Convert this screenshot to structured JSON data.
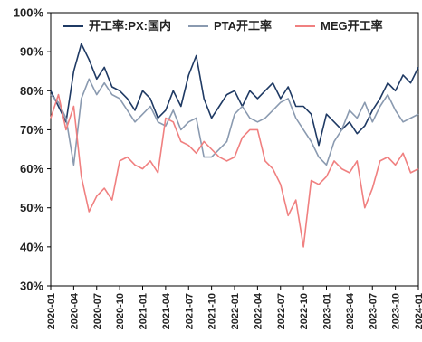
{
  "chart_data": {
    "type": "line",
    "title": "",
    "xlabel": "",
    "ylabel": "",
    "ylim": [
      30,
      100
    ],
    "yticks": [
      "30%",
      "40%",
      "50%",
      "60%",
      "70%",
      "80%",
      "90%",
      "100%"
    ],
    "x_range": [
      "2020-01",
      "2024-01"
    ],
    "xticks": [
      "2020-01",
      "2020-04",
      "2020-07",
      "2020-10",
      "2021-01",
      "2021-04",
      "2021-07",
      "2021-10",
      "2022-01",
      "2022-04",
      "2022-07",
      "2022-10",
      "2023-01",
      "2023-04",
      "2023-07",
      "2023-10",
      "2024-01"
    ],
    "grid": false,
    "legend_position": "top",
    "series": [
      {
        "name": "开工率:PX:国内",
        "color": "#1f3a64",
        "points": [
          [
            "2020-01",
            80
          ],
          [
            "2020-02",
            76
          ],
          [
            "2020-03",
            72
          ],
          [
            "2020-04",
            85
          ],
          [
            "2020-05",
            92
          ],
          [
            "2020-06",
            88
          ],
          [
            "2020-07",
            83
          ],
          [
            "2020-08",
            86
          ],
          [
            "2020-09",
            81
          ],
          [
            "2020-10",
            80
          ],
          [
            "2020-11",
            78
          ],
          [
            "2020-12",
            75
          ],
          [
            "2021-01",
            80
          ],
          [
            "2021-02",
            78
          ],
          [
            "2021-03",
            73
          ],
          [
            "2021-04",
            75
          ],
          [
            "2021-05",
            80
          ],
          [
            "2021-06",
            76
          ],
          [
            "2021-07",
            84
          ],
          [
            "2021-08",
            89
          ],
          [
            "2021-09",
            78
          ],
          [
            "2021-10",
            73
          ],
          [
            "2021-11",
            76
          ],
          [
            "2021-12",
            79
          ],
          [
            "2022-01",
            80
          ],
          [
            "2022-02",
            76
          ],
          [
            "2022-03",
            80
          ],
          [
            "2022-04",
            78
          ],
          [
            "2022-05",
            80
          ],
          [
            "2022-06",
            82
          ],
          [
            "2022-07",
            78
          ],
          [
            "2022-08",
            81
          ],
          [
            "2022-09",
            76
          ],
          [
            "2022-10",
            76
          ],
          [
            "2022-11",
            74
          ],
          [
            "2022-12",
            66
          ],
          [
            "2023-01",
            74
          ],
          [
            "2023-02",
            72
          ],
          [
            "2023-03",
            70
          ],
          [
            "2023-04",
            72
          ],
          [
            "2023-05",
            69
          ],
          [
            "2023-06",
            71
          ],
          [
            "2023-07",
            75
          ],
          [
            "2023-08",
            78
          ],
          [
            "2023-09",
            82
          ],
          [
            "2023-10",
            80
          ],
          [
            "2023-11",
            84
          ],
          [
            "2023-12",
            82
          ],
          [
            "2024-01",
            86
          ]
        ]
      },
      {
        "name": "PTA开工率",
        "color": "#8a9ab0",
        "points": [
          [
            "2020-01",
            79
          ],
          [
            "2020-02",
            77
          ],
          [
            "2020-03",
            73
          ],
          [
            "2020-04",
            61
          ],
          [
            "2020-05",
            78
          ],
          [
            "2020-06",
            83
          ],
          [
            "2020-07",
            79
          ],
          [
            "2020-08",
            82
          ],
          [
            "2020-09",
            79
          ],
          [
            "2020-10",
            78
          ],
          [
            "2020-11",
            75
          ],
          [
            "2020-12",
            72
          ],
          [
            "2021-01",
            74
          ],
          [
            "2021-02",
            76
          ],
          [
            "2021-03",
            72
          ],
          [
            "2021-04",
            71
          ],
          [
            "2021-05",
            75
          ],
          [
            "2021-06",
            70
          ],
          [
            "2021-07",
            72
          ],
          [
            "2021-08",
            73
          ],
          [
            "2021-09",
            63
          ],
          [
            "2021-10",
            63
          ],
          [
            "2021-11",
            65
          ],
          [
            "2021-12",
            67
          ],
          [
            "2022-01",
            74
          ],
          [
            "2022-02",
            76
          ],
          [
            "2022-03",
            73
          ],
          [
            "2022-04",
            72
          ],
          [
            "2022-05",
            73
          ],
          [
            "2022-06",
            75
          ],
          [
            "2022-07",
            77
          ],
          [
            "2022-08",
            78
          ],
          [
            "2022-09",
            73
          ],
          [
            "2022-10",
            70
          ],
          [
            "2022-11",
            67
          ],
          [
            "2022-12",
            63
          ],
          [
            "2023-01",
            61
          ],
          [
            "2023-02",
            67
          ],
          [
            "2023-03",
            70
          ],
          [
            "2023-04",
            75
          ],
          [
            "2023-05",
            73
          ],
          [
            "2023-06",
            77
          ],
          [
            "2023-07",
            72
          ],
          [
            "2023-08",
            76
          ],
          [
            "2023-09",
            79
          ],
          [
            "2023-10",
            75
          ],
          [
            "2023-11",
            72
          ],
          [
            "2023-12",
            73
          ],
          [
            "2024-01",
            74
          ]
        ]
      },
      {
        "name": "MEG开工率",
        "color": "#f08080",
        "points": [
          [
            "2020-01",
            73
          ],
          [
            "2020-02",
            79
          ],
          [
            "2020-03",
            70
          ],
          [
            "2020-04",
            76
          ],
          [
            "2020-05",
            58
          ],
          [
            "2020-06",
            49
          ],
          [
            "2020-07",
            53
          ],
          [
            "2020-08",
            55
          ],
          [
            "2020-09",
            52
          ],
          [
            "2020-10",
            62
          ],
          [
            "2020-11",
            63
          ],
          [
            "2020-12",
            61
          ],
          [
            "2021-01",
            60
          ],
          [
            "2021-02",
            62
          ],
          [
            "2021-03",
            59
          ],
          [
            "2021-04",
            73
          ],
          [
            "2021-05",
            72
          ],
          [
            "2021-06",
            67
          ],
          [
            "2021-07",
            66
          ],
          [
            "2021-08",
            64
          ],
          [
            "2021-09",
            67
          ],
          [
            "2021-10",
            65
          ],
          [
            "2021-11",
            63
          ],
          [
            "2021-12",
            62
          ],
          [
            "2022-01",
            63
          ],
          [
            "2022-02",
            68
          ],
          [
            "2022-03",
            70
          ],
          [
            "2022-04",
            70
          ],
          [
            "2022-05",
            62
          ],
          [
            "2022-06",
            60
          ],
          [
            "2022-07",
            56
          ],
          [
            "2022-08",
            48
          ],
          [
            "2022-09",
            52
          ],
          [
            "2022-10",
            40
          ],
          [
            "2022-11",
            57
          ],
          [
            "2022-12",
            56
          ],
          [
            "2023-01",
            58
          ],
          [
            "2023-02",
            62
          ],
          [
            "2023-03",
            60
          ],
          [
            "2023-04",
            59
          ],
          [
            "2023-05",
            62
          ],
          [
            "2023-06",
            50
          ],
          [
            "2023-07",
            55
          ],
          [
            "2023-08",
            62
          ],
          [
            "2023-09",
            63
          ],
          [
            "2023-10",
            61
          ],
          [
            "2023-11",
            64
          ],
          [
            "2023-12",
            59
          ],
          [
            "2024-01",
            60
          ]
        ]
      }
    ]
  }
}
